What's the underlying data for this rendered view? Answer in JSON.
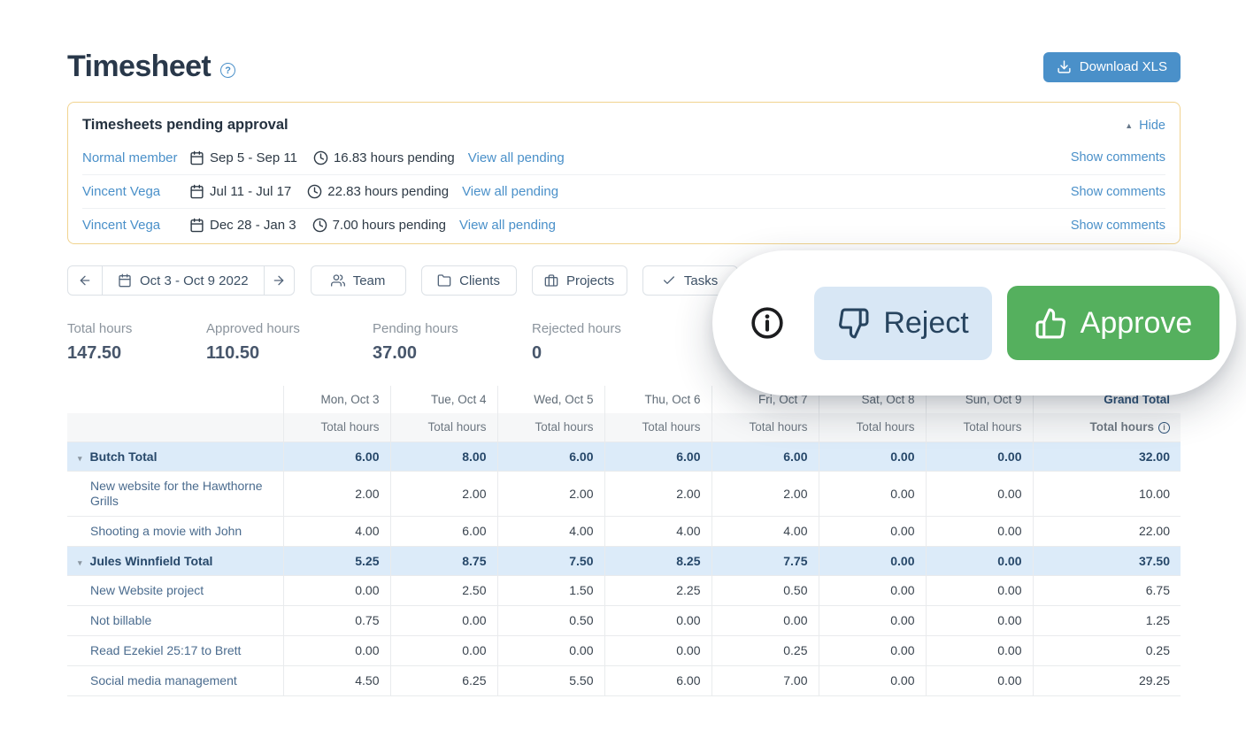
{
  "header": {
    "title": "Timesheet",
    "help_glyph": "?",
    "download_label": "Download XLS"
  },
  "pending_panel": {
    "title": "Timesheets pending approval",
    "hide_label": "Hide",
    "rows": [
      {
        "member": "Normal member",
        "date_range": "Sep 5 - Sep 11",
        "hours": "16.83 hours pending",
        "view_all": "View all pending",
        "comments": "Show comments"
      },
      {
        "member": "Vincent Vega",
        "date_range": "Jul 11 - Jul 17",
        "hours": "22.83 hours pending",
        "view_all": "View all pending",
        "comments": "Show comments"
      },
      {
        "member": "Vincent Vega",
        "date_range": "Dec 28 - Jan 3",
        "hours": "7.00 hours pending",
        "view_all": "View all pending",
        "comments": "Show comments"
      }
    ]
  },
  "toolbar": {
    "date_range": "Oct 3 - Oct 9 2022",
    "filters": [
      {
        "label": "Team",
        "icon": "users-icon"
      },
      {
        "label": "Clients",
        "icon": "folder-icon"
      },
      {
        "label": "Projects",
        "icon": "briefcase-icon"
      },
      {
        "label": "Tasks",
        "icon": "check-icon"
      }
    ]
  },
  "stats": [
    {
      "label": "Total hours",
      "value": "147.50"
    },
    {
      "label": "Approved hours",
      "value": "110.50"
    },
    {
      "label": "Pending hours",
      "value": "37.00"
    },
    {
      "label": "Rejected hours",
      "value": "0"
    }
  ],
  "overlay": {
    "reject_label": "Reject",
    "approve_label": "Approve"
  },
  "table": {
    "day_columns": [
      "Mon, Oct 3",
      "Tue, Oct 4",
      "Wed, Oct 5",
      "Thu, Oct 6",
      "Fri, Oct 7",
      "Sat, Oct 8",
      "Sun, Oct 9"
    ],
    "grand_total_label": "Grand Total",
    "subheader_label": "Total hours",
    "grand_subheader_label": "Total hours",
    "rows": [
      {
        "type": "group",
        "label": "Butch Total",
        "values": [
          "6.00",
          "8.00",
          "6.00",
          "6.00",
          "6.00",
          "0.00",
          "0.00"
        ],
        "total": "32.00"
      },
      {
        "type": "task",
        "label": "New website for the Hawthorne Grills",
        "values": [
          "2.00",
          "2.00",
          "2.00",
          "2.00",
          "2.00",
          "0.00",
          "0.00"
        ],
        "total": "10.00"
      },
      {
        "type": "task",
        "label": "Shooting a movie with John",
        "values": [
          "4.00",
          "6.00",
          "4.00",
          "4.00",
          "4.00",
          "0.00",
          "0.00"
        ],
        "total": "22.00"
      },
      {
        "type": "group",
        "label": "Jules Winnfield Total",
        "values": [
          "5.25",
          "8.75",
          "7.50",
          "8.25",
          "7.75",
          "0.00",
          "0.00"
        ],
        "total": "37.50"
      },
      {
        "type": "task",
        "label": "New Website project",
        "values": [
          "0.00",
          "2.50",
          "1.50",
          "2.25",
          "0.50",
          "0.00",
          "0.00"
        ],
        "total": "6.75"
      },
      {
        "type": "task",
        "label": "Not billable",
        "values": [
          "0.75",
          "0.00",
          "0.50",
          "0.00",
          "0.00",
          "0.00",
          "0.00"
        ],
        "total": "1.25"
      },
      {
        "type": "task",
        "label": "Read Ezekiel 25:17 to Brett",
        "values": [
          "0.00",
          "0.00",
          "0.00",
          "0.00",
          "0.25",
          "0.00",
          "0.00"
        ],
        "total": "0.25"
      },
      {
        "type": "task",
        "label": "Social media management",
        "values": [
          "4.50",
          "6.25",
          "5.50",
          "6.00",
          "7.00",
          "0.00",
          "0.00"
        ],
        "total": "29.25"
      }
    ]
  },
  "colors": {
    "accent_blue": "#4a90c9",
    "approve_green": "#55b05e",
    "reject_bg": "#d8e7f5",
    "panel_border": "#f1d38f",
    "group_row_bg": "#dcebf9"
  }
}
